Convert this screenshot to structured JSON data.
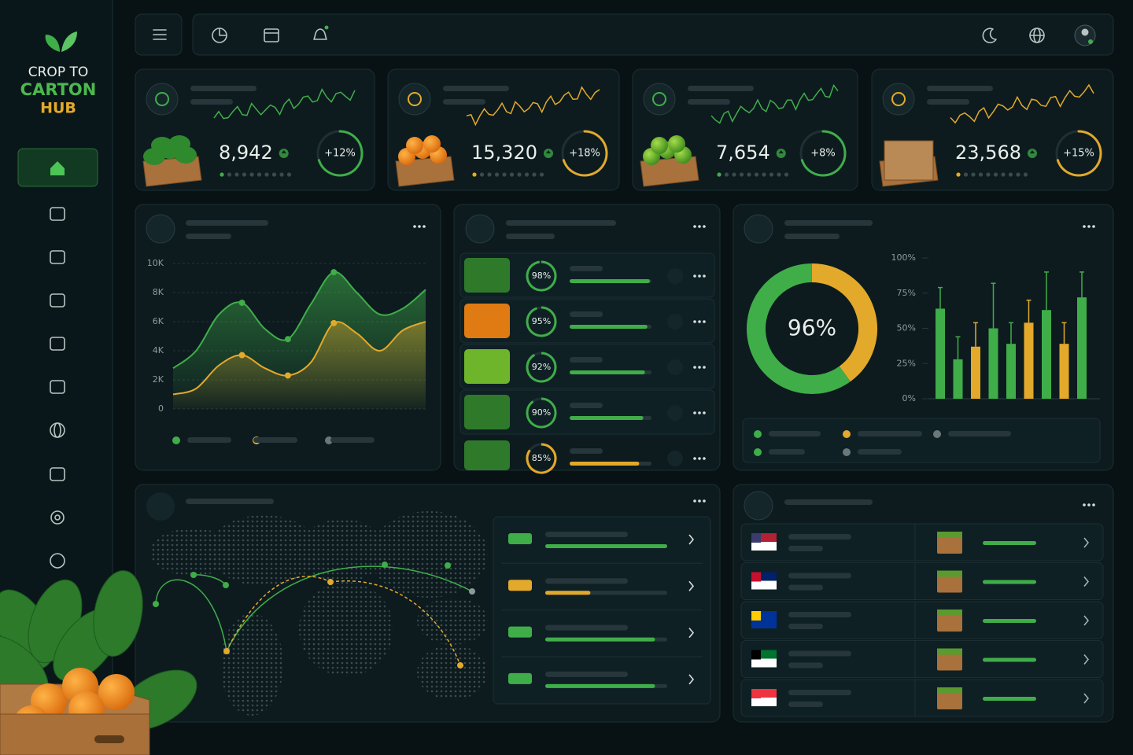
{
  "brand": {
    "line1": "CROP TO",
    "line2": "CARTON",
    "line3": "HUB"
  },
  "kpis": [
    {
      "value": "8,942",
      "change": "+12%",
      "color": "#3fae49"
    },
    {
      "value": "15,320",
      "change": "+18%",
      "color": "#e3a92b"
    },
    {
      "value": "7,654",
      "change": "+8%",
      "color": "#3fae49"
    },
    {
      "value": "23,568",
      "change": "+15%",
      "color": "#e3a92b"
    }
  ],
  "chart_data": [
    {
      "type": "area",
      "ylim": [
        0,
        10000
      ],
      "yticks": [
        {
          "value": 0,
          "label": "0"
        },
        {
          "value": 2000,
          "label": "2K"
        },
        {
          "value": 4000,
          "label": "4K"
        },
        {
          "value": 6000,
          "label": "6K"
        },
        {
          "value": 8000,
          "label": "8K"
        },
        {
          "value": 10000,
          "label": "10K"
        }
      ],
      "grid": true,
      "series": [
        {
          "color": "#3fae49",
          "values": [
            2800,
            4000,
            6500,
            7300,
            5500,
            4800,
            7200,
            9400,
            8000,
            6500,
            6900,
            8200
          ]
        },
        {
          "color": "#e3a92b",
          "values": [
            1000,
            1400,
            3000,
            3700,
            2800,
            2300,
            3200,
            5900,
            5200,
            4000,
            5400,
            6000
          ]
        }
      ]
    },
    {
      "type": "donut",
      "center_label": "96%",
      "values": [
        40,
        60
      ],
      "colors": [
        "#e3a92b",
        "#3fae49"
      ]
    },
    {
      "type": "bar",
      "ylim": [
        0,
        100
      ],
      "yticks": [
        {
          "value": 0,
          "label": "0%"
        },
        {
          "value": 25,
          "label": "25%"
        },
        {
          "value": 50,
          "label": "50%"
        },
        {
          "value": 75,
          "label": "75%"
        },
        {
          "value": 100,
          "label": "100%"
        }
      ],
      "values": [
        64,
        28,
        37,
        50,
        39,
        54,
        63,
        39,
        72
      ],
      "errors": [
        15,
        16,
        17,
        32,
        15,
        16,
        27,
        15,
        18
      ],
      "colors": [
        "#3fae49",
        "#3fae49",
        "#e3a92b",
        "#3fae49",
        "#3fae49",
        "#e3a92b",
        "#3fae49",
        "#e3a92b",
        "#3fae49"
      ]
    }
  ],
  "quality_list": [
    {
      "percent": {
        "value": 98,
        "label": "98%"
      },
      "color": "#3fae49"
    },
    {
      "percent": {
        "value": 95,
        "label": "95%"
      },
      "color": "#3fae49"
    },
    {
      "percent": {
        "value": 92,
        "label": "92%"
      },
      "color": "#3fae49"
    },
    {
      "percent": {
        "value": 90,
        "label": "90%"
      },
      "color": "#3fae49"
    },
    {
      "percent": {
        "value": 85,
        "label": "85%"
      },
      "color": "#e3a92b"
    }
  ],
  "routes": [
    {
      "progress": 100,
      "color": "#3fae49"
    },
    {
      "progress": 37,
      "color": "#e3a92b"
    },
    {
      "progress": 90,
      "color": "#3fae49"
    },
    {
      "progress": 90,
      "color": "#3fae49"
    }
  ]
}
